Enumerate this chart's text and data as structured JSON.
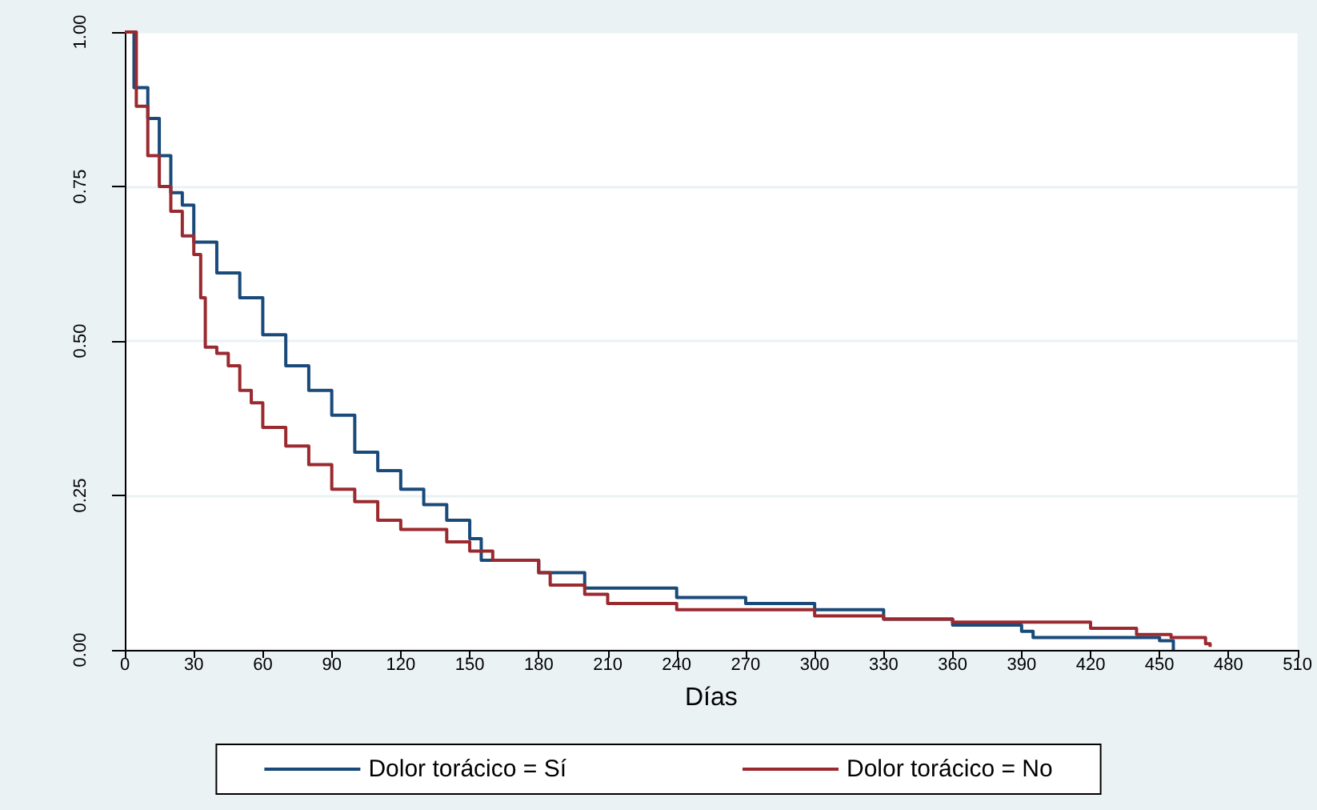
{
  "chart_data": {
    "type": "step",
    "xlabel": "Días",
    "xlim": [
      0,
      510
    ],
    "xticks": [
      0,
      30,
      60,
      90,
      120,
      150,
      180,
      210,
      240,
      270,
      300,
      330,
      360,
      390,
      420,
      450,
      480,
      510
    ],
    "ylim": [
      0,
      1
    ],
    "yticks": [
      {
        "value": 0,
        "label": "0.00"
      },
      {
        "value": 0.25,
        "label": "0.25"
      },
      {
        "value": 0.5,
        "label": "0.50"
      },
      {
        "value": 0.75,
        "label": "0.75"
      },
      {
        "value": 1,
        "label": "1.00"
      }
    ],
    "grid": "y",
    "legend": "bottom",
    "line_style": "solid",
    "marker": "none",
    "series": [
      {
        "name": "Dolor torácico = Sí",
        "color": "#1a4a7a",
        "x": [
          0,
          4,
          10,
          15,
          20,
          25,
          30,
          40,
          50,
          60,
          70,
          80,
          90,
          100,
          110,
          120,
          130,
          140,
          150,
          155,
          180,
          200,
          240,
          270,
          300,
          330,
          360,
          390,
          395,
          450,
          456
        ],
        "values": [
          1,
          0.91,
          0.86,
          0.8,
          0.74,
          0.72,
          0.66,
          0.61,
          0.57,
          0.51,
          0.46,
          0.42,
          0.38,
          0.32,
          0.29,
          0.26,
          0.235,
          0.21,
          0.18,
          0.145,
          0.125,
          0.1,
          0.085,
          0.075,
          0.065,
          0.05,
          0.04,
          0.03,
          0.02,
          0.015,
          0
        ]
      },
      {
        "name": "Dolor torácico = No",
        "color": "#9a2a30",
        "x": [
          0,
          5,
          10,
          15,
          20,
          25,
          30,
          33,
          35,
          40,
          45,
          50,
          55,
          60,
          70,
          80,
          90,
          100,
          110,
          120,
          140,
          150,
          160,
          180,
          185,
          200,
          210,
          240,
          300,
          330,
          360,
          420,
          440,
          455,
          470,
          472
        ],
        "values": [
          1,
          0.88,
          0.8,
          0.75,
          0.71,
          0.67,
          0.64,
          0.57,
          0.49,
          0.48,
          0.46,
          0.42,
          0.4,
          0.36,
          0.33,
          0.3,
          0.26,
          0.24,
          0.21,
          0.195,
          0.175,
          0.16,
          0.145,
          0.125,
          0.105,
          0.09,
          0.075,
          0.065,
          0.055,
          0.05,
          0.045,
          0.035,
          0.025,
          0.02,
          0.01,
          0.005
        ]
      }
    ]
  }
}
